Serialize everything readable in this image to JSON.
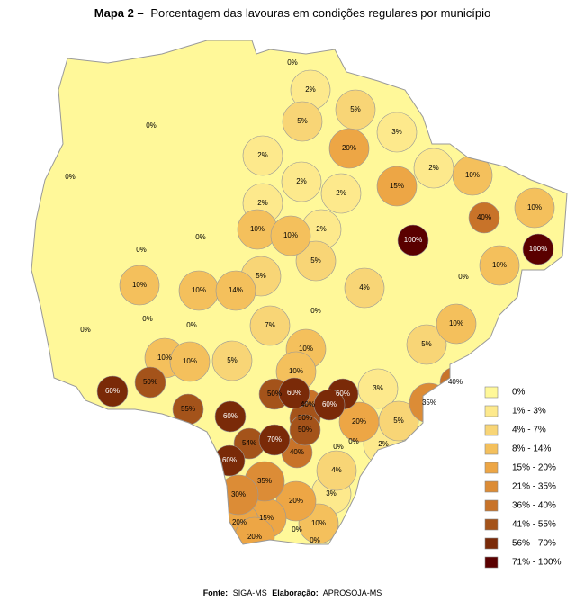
{
  "header": {
    "label": "Mapa 2 –",
    "title": "Porcentagem das lavouras em condições regulares por município"
  },
  "legend": {
    "items": [
      {
        "label": "0%",
        "color": "#fff899"
      },
      {
        "label": "1% - 3%",
        "color": "#fde98c"
      },
      {
        "label": "4% - 7%",
        "color": "#f8d576"
      },
      {
        "label": "8% - 14%",
        "color": "#f4c05c"
      },
      {
        "label": "15% - 20%",
        "color": "#eda645"
      },
      {
        "label": "21% - 35%",
        "color": "#dc8c36"
      },
      {
        "label": "36% - 40%",
        "color": "#c87329"
      },
      {
        "label": "41% - 55%",
        "color": "#a4531a"
      },
      {
        "label": "56% - 70%",
        "color": "#7a2a08"
      },
      {
        "label": "71% - 100%",
        "color": "#5a0000"
      }
    ]
  },
  "map": {
    "labels": [
      "0%",
      "2%",
      "5%",
      "5%",
      "20%",
      "3%",
      "0%",
      "0%",
      "2%",
      "2%",
      "2%",
      "15%",
      "2%",
      "10%",
      "10%",
      "40%",
      "100%",
      "100%",
      "2%",
      "10%",
      "10%",
      "2%",
      "5%",
      "0%",
      "0%",
      "10%",
      "10%",
      "14%",
      "5%",
      "4%",
      "10%",
      "0%",
      "0%",
      "0%",
      "0%",
      "7%",
      "0%",
      "10%",
      "5%",
      "10%",
      "10%",
      "10%",
      "5%",
      "10%",
      "60%",
      "50%",
      "55%",
      "40%",
      "3%",
      "35%",
      "50%",
      "60%",
      "60%",
      "40%",
      "60%",
      "50%",
      "50%",
      "60%",
      "20%",
      "5%",
      "0%",
      "0%",
      "2%",
      "54%",
      "70%",
      "40%",
      "60%",
      "4%",
      "35%",
      "3%",
      "30%",
      "20%",
      "15%",
      "20%",
      "10%",
      "20%",
      "0%",
      "0%"
    ]
  },
  "footer": {
    "source_label": "Fonte:",
    "source": "SIGA-MS",
    "author_label": "Elaboração:",
    "author": "APROSOJA-MS"
  }
}
